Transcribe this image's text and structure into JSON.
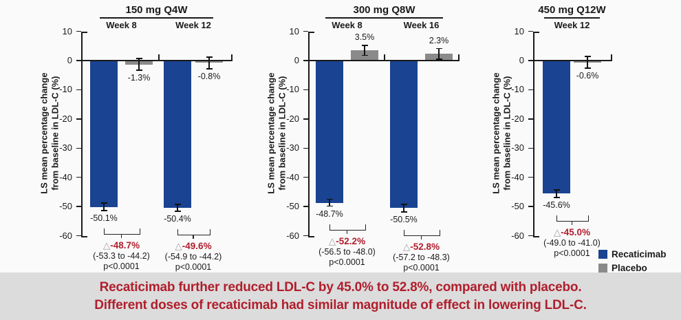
{
  "colors": {
    "recaticimab": "#1A4391",
    "placebo": "#8A8A8A",
    "accent_red": "#B01E2C",
    "triangle_gray": "#A0A0A0",
    "axis": "#1A1A1A",
    "footer_bg": "#DCDCDC",
    "page_bg": "#FAFAFA"
  },
  "axis": {
    "label_lines": [
      "LS mean percentage change",
      "from baseline in LDL-C (%)"
    ],
    "ylabel": "LS mean percentage change from baseline in LDL-C (%)",
    "yticks": [
      10,
      0,
      -10,
      -20,
      -30,
      -40,
      -50,
      -60
    ],
    "ylim": [
      -60,
      10
    ]
  },
  "legend": {
    "items": [
      {
        "label": "Recaticimab",
        "color_key": "recaticimab"
      },
      {
        "label": "Placebo",
        "color_key": "placebo"
      }
    ]
  },
  "footer": {
    "line1": "Recaticimab further reduced LDL-C by 45.0% to 52.8%, compared with placebo.",
    "line2": "Different doses of recaticimab had similar magnitude of effect in lowering LDL-C."
  },
  "chart_data": [
    {
      "type": "bar",
      "title": "150 mg Q4W",
      "ylabel": "LS mean percentage change from baseline in LDL-C (%)",
      "ylim": [
        -60,
        10
      ],
      "series": [
        "Recaticimab",
        "Placebo"
      ],
      "groups": [
        {
          "label": "Week 8",
          "recaticimab": {
            "value": -50.1,
            "err": 1.3,
            "label": "-50.1%"
          },
          "placebo": {
            "value": -1.3,
            "err": 2.0,
            "label": "-1.3%"
          },
          "difference": {
            "triangle": "△",
            "value": "-48.7%",
            "ci": "(-53.3 to -44.2)",
            "p": "p<0.0001"
          }
        },
        {
          "label": "Week 12",
          "recaticimab": {
            "value": -50.4,
            "err": 1.2,
            "label": "-50.4%"
          },
          "placebo": {
            "value": -0.8,
            "err": 2.0,
            "label": "-0.8%"
          },
          "difference": {
            "triangle": "△",
            "value": "-49.6%",
            "ci": "(-54.9 to -44.2)",
            "p": "p<0.0001"
          }
        }
      ]
    },
    {
      "type": "bar",
      "title": "300 mg Q8W",
      "ylabel": "LS mean percentage change from baseline in LDL-C (%)",
      "ylim": [
        -60,
        10
      ],
      "series": [
        "Recaticimab",
        "Placebo"
      ],
      "groups": [
        {
          "label": "Week 8",
          "recaticimab": {
            "value": -48.7,
            "err": 1.2,
            "label": "-48.7%"
          },
          "placebo": {
            "value": 3.5,
            "err": 1.7,
            "label": "3.5%"
          },
          "difference": {
            "triangle": "△",
            "value": "-52.2%",
            "ci": "(-56.5 to -48.0)",
            "p": "p<0.0001"
          }
        },
        {
          "label": "Week 16",
          "recaticimab": {
            "value": -50.5,
            "err": 1.3,
            "label": "-50.5%"
          },
          "placebo": {
            "value": 2.3,
            "err": 1.8,
            "label": "2.3%"
          },
          "difference": {
            "triangle": "△",
            "value": "-52.8%",
            "ci": "(-57.2 to -48.3)",
            "p": "p<0.0001"
          }
        }
      ]
    },
    {
      "type": "bar",
      "title": "450 mg Q12W",
      "ylabel": "LS mean percentage change from baseline in LDL-C (%)",
      "ylim": [
        -60,
        10
      ],
      "series": [
        "Recaticimab",
        "Placebo"
      ],
      "groups": [
        {
          "label": "Week 12",
          "recaticimab": {
            "value": -45.6,
            "err": 1.3,
            "label": "-45.6%"
          },
          "placebo": {
            "value": -0.6,
            "err": 2.0,
            "label": "-0.6%"
          },
          "difference": {
            "triangle": "△",
            "value": "-45.0%",
            "ci": "(-49.0 to -41.0)",
            "p": "p<0.0001"
          }
        }
      ]
    }
  ]
}
